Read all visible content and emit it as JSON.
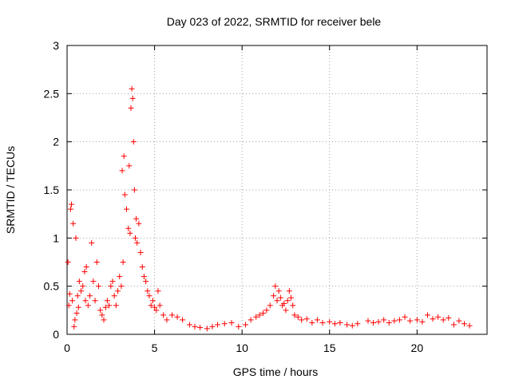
{
  "chart_data": {
    "type": "scatter",
    "title": "Day 023 of 2022, SRMTID for receiver bele",
    "xlabel": "GPS time / hours",
    "ylabel": "SRMTID / TECUs",
    "xlim": [
      0,
      24
    ],
    "ylim": [
      0,
      3
    ],
    "xticks": [
      0,
      5,
      10,
      15,
      20
    ],
    "yticks": [
      0,
      0.5,
      1,
      1.5,
      2,
      2.5,
      3
    ],
    "xtick_labels": [
      "0",
      "5",
      "10",
      "15",
      "20"
    ],
    "ytick_labels": [
      "0",
      "0.5",
      "1",
      "1.5",
      "2",
      "2.5",
      "3"
    ],
    "grid": true,
    "marker": "+",
    "color": "#ff0000",
    "series": [
      {
        "name": "SRMTID",
        "points": [
          [
            0.05,
            0.75
          ],
          [
            0.1,
            0.3
          ],
          [
            0.15,
            0.42
          ],
          [
            0.2,
            1.3
          ],
          [
            0.25,
            1.35
          ],
          [
            0.3,
            0.35
          ],
          [
            0.35,
            1.15
          ],
          [
            0.4,
            0.08
          ],
          [
            0.45,
            0.15
          ],
          [
            0.5,
            1.0
          ],
          [
            0.55,
            0.22
          ],
          [
            0.6,
            0.4
          ],
          [
            0.65,
            0.28
          ],
          [
            0.7,
            0.55
          ],
          [
            0.8,
            0.45
          ],
          [
            0.9,
            0.5
          ],
          [
            1.0,
            0.65
          ],
          [
            1.05,
            0.35
          ],
          [
            1.1,
            0.7
          ],
          [
            1.2,
            0.3
          ],
          [
            1.3,
            0.4
          ],
          [
            1.4,
            0.95
          ],
          [
            1.5,
            0.55
          ],
          [
            1.6,
            0.35
          ],
          [
            1.7,
            0.75
          ],
          [
            1.8,
            0.5
          ],
          [
            1.9,
            0.25
          ],
          [
            2.0,
            0.2
          ],
          [
            2.1,
            0.15
          ],
          [
            2.2,
            0.28
          ],
          [
            2.3,
            0.35
          ],
          [
            2.4,
            0.3
          ],
          [
            2.5,
            0.5
          ],
          [
            2.6,
            0.55
          ],
          [
            2.7,
            0.4
          ],
          [
            2.8,
            0.3
          ],
          [
            2.9,
            0.45
          ],
          [
            3.0,
            0.6
          ],
          [
            3.1,
            0.5
          ],
          [
            3.15,
            1.7
          ],
          [
            3.2,
            0.75
          ],
          [
            3.25,
            1.85
          ],
          [
            3.3,
            1.45
          ],
          [
            3.4,
            1.3
          ],
          [
            3.5,
            1.1
          ],
          [
            3.55,
            1.75
          ],
          [
            3.6,
            1.05
          ],
          [
            3.65,
            2.35
          ],
          [
            3.7,
            2.55
          ],
          [
            3.75,
            2.45
          ],
          [
            3.8,
            2.0
          ],
          [
            3.85,
            1.5
          ],
          [
            3.9,
            1.0
          ],
          [
            3.95,
            1.2
          ],
          [
            4.0,
            0.95
          ],
          [
            4.1,
            1.15
          ],
          [
            4.2,
            0.85
          ],
          [
            4.3,
            0.7
          ],
          [
            4.4,
            0.6
          ],
          [
            4.5,
            0.55
          ],
          [
            4.6,
            0.45
          ],
          [
            4.7,
            0.4
          ],
          [
            4.8,
            0.3
          ],
          [
            4.9,
            0.35
          ],
          [
            5.0,
            0.28
          ],
          [
            5.1,
            0.25
          ],
          [
            5.2,
            0.45
          ],
          [
            5.3,
            0.3
          ],
          [
            5.5,
            0.2
          ],
          [
            5.7,
            0.15
          ],
          [
            6.0,
            0.2
          ],
          [
            6.3,
            0.18
          ],
          [
            6.6,
            0.15
          ],
          [
            7.0,
            0.1
          ],
          [
            7.3,
            0.08
          ],
          [
            7.6,
            0.07
          ],
          [
            8.0,
            0.06
          ],
          [
            8.3,
            0.08
          ],
          [
            8.6,
            0.1
          ],
          [
            9.0,
            0.11
          ],
          [
            9.4,
            0.12
          ],
          [
            9.8,
            0.08
          ],
          [
            10.2,
            0.1
          ],
          [
            10.5,
            0.15
          ],
          [
            10.8,
            0.18
          ],
          [
            11.0,
            0.2
          ],
          [
            11.2,
            0.22
          ],
          [
            11.4,
            0.25
          ],
          [
            11.6,
            0.3
          ],
          [
            11.8,
            0.4
          ],
          [
            11.9,
            0.5
          ],
          [
            12.0,
            0.35
          ],
          [
            12.1,
            0.45
          ],
          [
            12.2,
            0.38
          ],
          [
            12.3,
            0.3
          ],
          [
            12.4,
            0.32
          ],
          [
            12.5,
            0.25
          ],
          [
            12.6,
            0.35
          ],
          [
            12.7,
            0.45
          ],
          [
            12.8,
            0.38
          ],
          [
            12.9,
            0.3
          ],
          [
            13.0,
            0.2
          ],
          [
            13.2,
            0.18
          ],
          [
            13.4,
            0.15
          ],
          [
            13.7,
            0.16
          ],
          [
            14.0,
            0.12
          ],
          [
            14.3,
            0.15
          ],
          [
            14.6,
            0.12
          ],
          [
            15.0,
            0.13
          ],
          [
            15.3,
            0.11
          ],
          [
            15.6,
            0.12
          ],
          [
            16.0,
            0.1
          ],
          [
            16.3,
            0.09
          ],
          [
            16.6,
            0.11
          ],
          [
            17.2,
            0.14
          ],
          [
            17.5,
            0.12
          ],
          [
            17.8,
            0.13
          ],
          [
            18.1,
            0.15
          ],
          [
            18.4,
            0.12
          ],
          [
            18.7,
            0.14
          ],
          [
            19.0,
            0.15
          ],
          [
            19.3,
            0.18
          ],
          [
            19.6,
            0.14
          ],
          [
            20.0,
            0.15
          ],
          [
            20.3,
            0.13
          ],
          [
            20.6,
            0.2
          ],
          [
            20.9,
            0.16
          ],
          [
            21.2,
            0.18
          ],
          [
            21.5,
            0.15
          ],
          [
            21.8,
            0.17
          ],
          [
            22.1,
            0.1
          ],
          [
            22.4,
            0.14
          ],
          [
            22.7,
            0.11
          ],
          [
            23.0,
            0.09
          ]
        ]
      }
    ]
  }
}
